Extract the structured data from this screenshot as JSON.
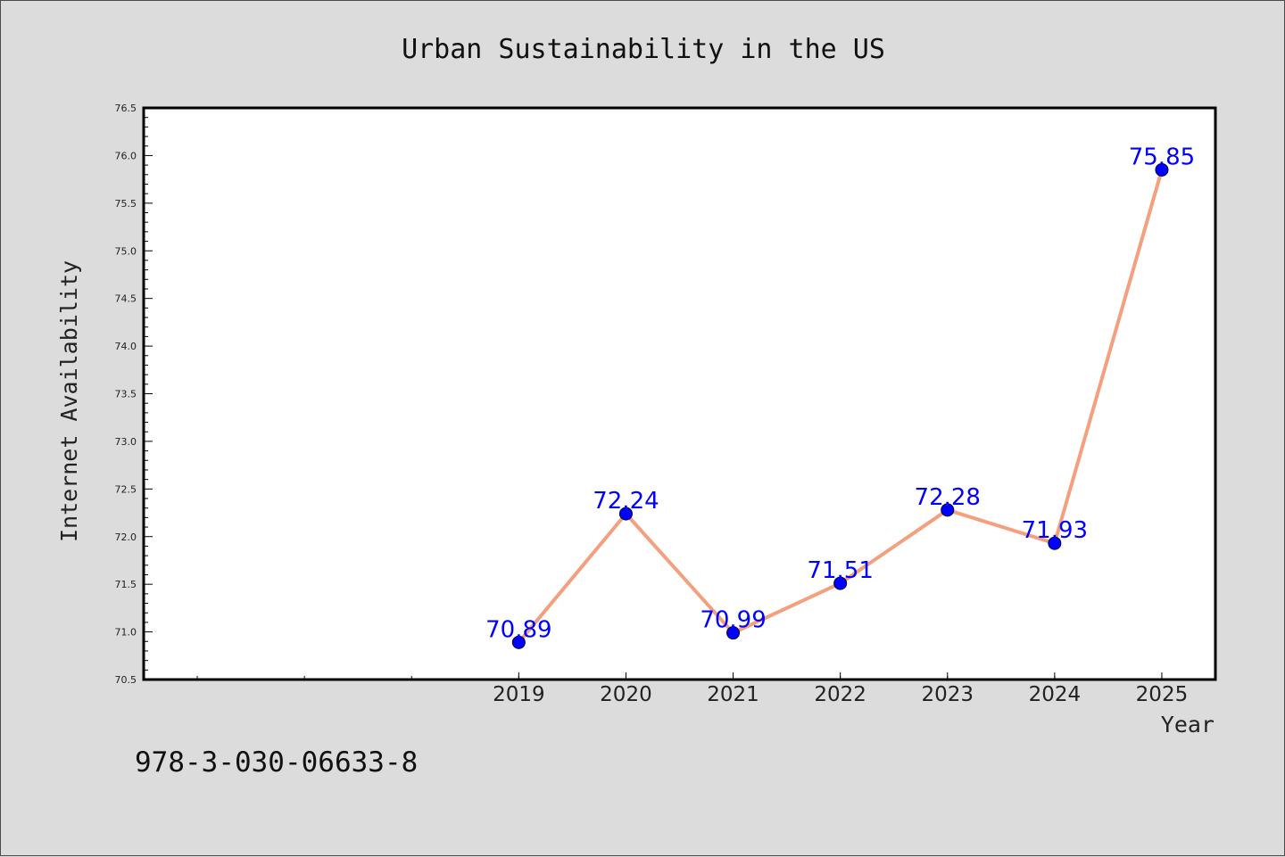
{
  "chart_data": {
    "type": "line",
    "title": "Urban Sustainability in the US",
    "xlabel": "Year",
    "ylabel": "Internet Availability",
    "x": [
      2019,
      2020,
      2021,
      2022,
      2023,
      2024,
      2025
    ],
    "values": [
      70.89,
      72.24,
      70.99,
      71.51,
      72.28,
      71.93,
      75.85
    ],
    "data_labels": [
      "70.89",
      "72.24",
      "70.99",
      "71.51",
      "72.28",
      "71.93",
      "75.85"
    ],
    "xlim": [
      2015.5,
      2025.5
    ],
    "ylim": [
      70.5,
      76.5
    ],
    "yticks": [
      "70.5",
      "71.0",
      "71.5",
      "72.0",
      "72.5",
      "73.0",
      "73.5",
      "74.0",
      "74.5",
      "75.0",
      "75.5",
      "76.0",
      "76.5"
    ],
    "xticks": [
      "2019",
      "2020",
      "2021",
      "2022",
      "2023",
      "2024",
      "2025"
    ],
    "grid": false,
    "line_color": "#f4a07e",
    "marker_color": "#0000ff",
    "label_color": "#0000ff"
  },
  "footer": {
    "isbn": "978-3-030-06633-8"
  }
}
